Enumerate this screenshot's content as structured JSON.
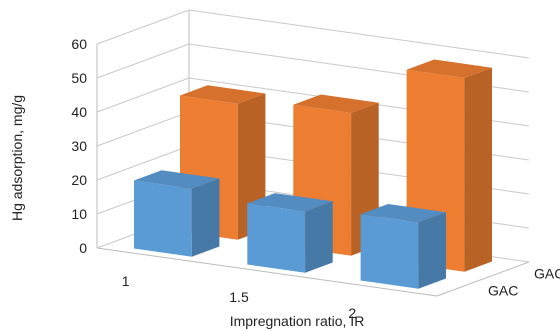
{
  "chart_data": {
    "type": "bar",
    "title": "",
    "xlabel": "Impregnation ratio, IR",
    "ylabel": "Hg adsorption, mg/g",
    "categories": [
      "1",
      "1.5",
      "2"
    ],
    "yticks": [
      "0",
      "10",
      "20",
      "30",
      "40",
      "50",
      "60"
    ],
    "ylim": [
      0,
      60
    ],
    "depth_labels": [
      "GAC",
      "GAC-S"
    ],
    "series": [
      {
        "name": "GAC",
        "values": [
          20,
          18,
          19.5
        ],
        "color": "#5b9bd5"
      },
      {
        "name": "GAC-S",
        "values": [
          40,
          42,
          57
        ],
        "color": "#ed7d31"
      }
    ],
    "grid": true,
    "legend": "none"
  }
}
